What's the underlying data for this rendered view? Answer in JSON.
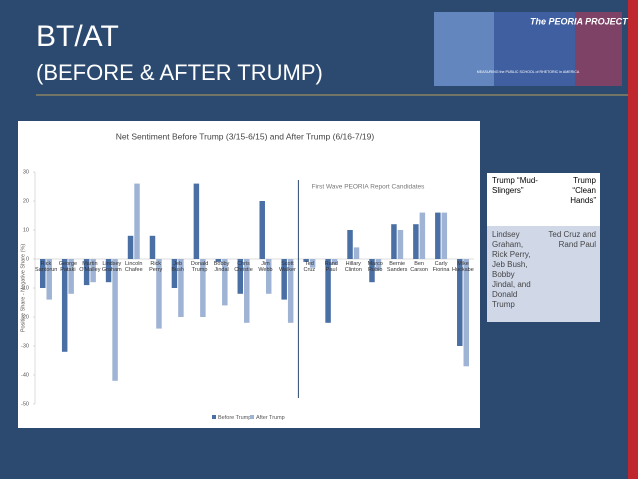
{
  "slide": {
    "title": "BT/AT",
    "subtitle": "(BEFORE & AFTER TRUMP)"
  },
  "banner": {
    "title": "The PEORIA PROJECT",
    "tagline": "MEASURING the PUBLIC SCHOOL of RHETORIC in AMERICA"
  },
  "table": {
    "header": [
      "Trump “Mud-Slingers”",
      "Trump “Clean Hands”"
    ],
    "rows": [
      [
        "Lindsey Graham, Rick Perry, Jeb Bush, Bobby Jindal, and Donald Trump",
        "Ted Cruz and Rand Paul"
      ]
    ]
  },
  "chart_data": {
    "type": "bar",
    "title": "Net Sentiment Before Trump (3/15-6/15) and After Trump (6/16-7/19)",
    "y_label": "Positive Share - Negative Share (%)",
    "annotation": "First Wave PEORIA Report Candidates",
    "categories": [
      "Rick Santorum",
      "George Pataki",
      "Martin O'Malley",
      "Lindsey Graham",
      "Lincoln Chafee",
      "Rick Perry",
      "Jeb Bush",
      "Donald Trump",
      "Bobby Jindal",
      "Chris Christie",
      "Jim Webb",
      "Scott Walker",
      "Ted Cruz",
      "Rand Paul",
      "Hillary Clinton",
      "Marco Rubio",
      "Bernie Sanders",
      "Ben Carson",
      "Carly Fiorina",
      "Mike Huckabee"
    ],
    "series": [
      {
        "name": "Before Trump",
        "color": "#4a6fa5",
        "values": [
          -10,
          -32,
          -9,
          -8,
          8,
          8,
          -10,
          26,
          -1,
          -12,
          20,
          -14,
          -1,
          -22,
          10,
          -8,
          12,
          12,
          16,
          -30
        ]
      },
      {
        "name": "After Trump",
        "color": "#9fb3d4",
        "values": [
          -14,
          -12,
          -8,
          -42,
          26,
          -24,
          -20,
          -20,
          -16,
          -22,
          -12,
          -22,
          -3,
          -2,
          4,
          -4,
          10,
          16,
          16,
          -37
        ]
      }
    ],
    "ylim": [
      -50,
      30
    ],
    "yticks": [
      30,
      20,
      10,
      0,
      -10,
      -20,
      -30,
      -40,
      -50
    ],
    "legend": "bottom"
  }
}
